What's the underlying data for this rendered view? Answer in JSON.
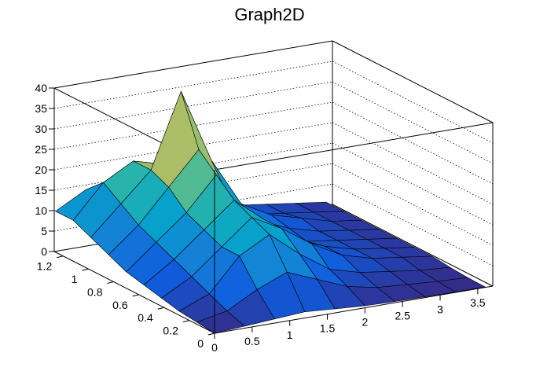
{
  "chart_data": {
    "type": "surface3d",
    "title": "Graph2D",
    "xlabel": "",
    "ylabel": "",
    "zlabel": "",
    "x_ticks": [
      "0",
      "0.5",
      "1",
      "1.5",
      "2",
      "2.5",
      "3",
      "3.5"
    ],
    "y_ticks": [
      "0",
      "0.2",
      "0.4",
      "0.6",
      "0.8",
      "1",
      "1.2"
    ],
    "z_ticks": [
      "0",
      "5",
      "10",
      "15",
      "20",
      "25",
      "30",
      "35",
      "40"
    ],
    "xlim": [
      0,
      3.7
    ],
    "ylim": [
      0,
      1.27
    ],
    "zlim": [
      0,
      40
    ],
    "grid": true,
    "colormap": [
      "#352a87",
      "#0f5cdd",
      "#1481d6",
      "#06a4ca",
      "#2eb7a4",
      "#87bf77",
      "#d1bb59",
      "#fec832",
      "#f9fb0e"
    ],
    "x": [
      0,
      0.4,
      0.8,
      1.2,
      1.6,
      2.0,
      2.4,
      2.8,
      3.2,
      3.6
    ],
    "y": [
      0,
      0.14,
      0.28,
      0.42,
      0.56,
      0.7,
      0.84,
      0.98,
      1.12,
      1.26
    ],
    "z": [
      [
        0,
        0.5,
        1,
        1.5,
        1,
        0.5,
        0.3,
        0.2,
        0.1,
        0.1
      ],
      [
        0.5,
        2,
        6,
        9,
        6,
        3,
        1.5,
        1,
        0.5,
        0.2
      ],
      [
        1,
        4,
        12,
        16,
        10,
        5,
        3,
        2,
        1,
        0.5
      ],
      [
        2,
        6,
        12,
        18,
        14,
        9,
        5,
        3,
        2,
        1
      ],
      [
        3,
        8,
        14,
        20,
        14,
        8,
        5,
        3,
        2,
        1
      ],
      [
        4,
        10,
        16,
        24,
        12,
        7,
        4,
        3,
        2,
        1
      ],
      [
        6,
        12,
        20,
        28,
        15,
        8,
        5,
        3,
        2,
        1
      ],
      [
        8,
        15,
        22,
        40,
        22,
        10,
        6,
        4,
        2,
        1
      ],
      [
        10,
        18,
        22,
        20,
        10,
        6,
        4,
        3,
        2,
        1
      ],
      [
        10,
        14,
        10,
        8,
        6,
        5,
        4,
        3,
        2,
        1
      ]
    ]
  }
}
